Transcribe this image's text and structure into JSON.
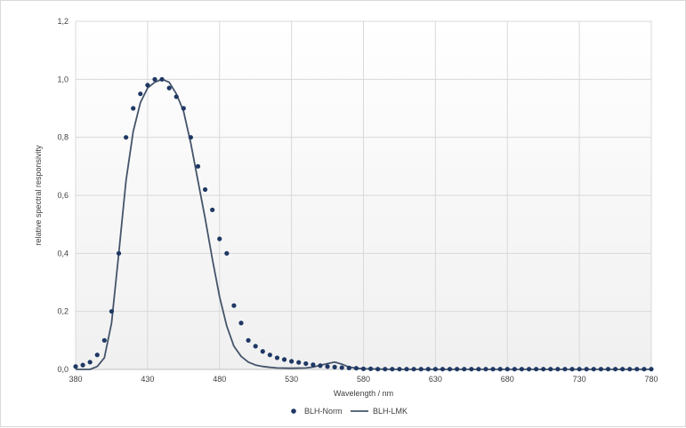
{
  "chart_data": {
    "type": "scatter",
    "xlabel": "Wavelength / nm",
    "ylabel": "relative spectral responsivity",
    "xlim": [
      380,
      780
    ],
    "ylim": [
      0,
      1.2
    ],
    "x_ticks": [
      "380",
      "430",
      "480",
      "530",
      "580",
      "630",
      "680",
      "730",
      "780"
    ],
    "y_ticks": [
      "0,0",
      "0,2",
      "0,4",
      "0,6",
      "0,8",
      "1,0",
      "1,2"
    ],
    "grid": true,
    "legend_position": "bottom",
    "colors": {
      "norm": "#1f3864",
      "lmk": "#44546a"
    },
    "series": [
      {
        "name": "BLH-Norm",
        "kind": "points",
        "x": [
          380,
          385,
          390,
          395,
          400,
          405,
          410,
          415,
          420,
          425,
          430,
          435,
          440,
          445,
          450,
          455,
          460,
          465,
          470,
          475,
          480,
          485,
          490,
          495,
          500,
          505,
          510,
          515,
          520,
          525,
          530,
          535,
          540,
          545,
          550,
          555,
          560,
          565,
          570,
          575,
          580,
          585,
          590,
          595,
          600,
          605,
          610,
          615,
          620,
          625,
          630,
          635,
          640,
          645,
          650,
          655,
          660,
          665,
          670,
          675,
          680,
          685,
          690,
          695,
          700,
          705,
          710,
          715,
          720,
          725,
          730,
          735,
          740,
          745,
          750,
          755,
          760,
          765,
          770,
          775,
          780
        ],
        "y": [
          0.01,
          0.015,
          0.025,
          0.05,
          0.1,
          0.2,
          0.4,
          0.8,
          0.9,
          0.95,
          0.98,
          1.0,
          1.0,
          0.97,
          0.94,
          0.9,
          0.8,
          0.7,
          0.62,
          0.55,
          0.45,
          0.4,
          0.22,
          0.16,
          0.1,
          0.08,
          0.062,
          0.05,
          0.04,
          0.034,
          0.028,
          0.024,
          0.02,
          0.016,
          0.013,
          0.01,
          0.008,
          0.006,
          0.005,
          0.004,
          0.002,
          0.002,
          0.001,
          0.001,
          0.001,
          0.001,
          0.001,
          0.001,
          0.001,
          0.001,
          0.001,
          0.001,
          0.001,
          0.001,
          0.001,
          0.001,
          0.001,
          0.001,
          0.001,
          0.001,
          0.001,
          0.001,
          0.001,
          0.001,
          0.001,
          0.001,
          0.001,
          0.001,
          0.001,
          0.001,
          0.001,
          0.001,
          0.001,
          0.001,
          0.001,
          0.001,
          0.001,
          0.001,
          0.001,
          0.001,
          0.001
        ]
      },
      {
        "name": "BLH-LMK",
        "kind": "line",
        "x": [
          380,
          390,
          395,
          400,
          405,
          410,
          415,
          420,
          425,
          430,
          435,
          440,
          445,
          450,
          455,
          460,
          465,
          470,
          475,
          480,
          485,
          490,
          495,
          500,
          505,
          510,
          515,
          520,
          530,
          540,
          545,
          550,
          555,
          560,
          565,
          570,
          575,
          580,
          590,
          600,
          650,
          700,
          780
        ],
        "y": [
          0.0,
          0.0,
          0.01,
          0.04,
          0.16,
          0.4,
          0.65,
          0.82,
          0.92,
          0.97,
          0.99,
          1.0,
          0.99,
          0.95,
          0.89,
          0.78,
          0.65,
          0.52,
          0.38,
          0.25,
          0.15,
          0.08,
          0.045,
          0.025,
          0.015,
          0.01,
          0.007,
          0.005,
          0.004,
          0.005,
          0.008,
          0.014,
          0.02,
          0.025,
          0.018,
          0.008,
          0.004,
          0.002,
          0.001,
          0.0,
          0.0,
          0.0,
          0.0
        ]
      }
    ]
  }
}
